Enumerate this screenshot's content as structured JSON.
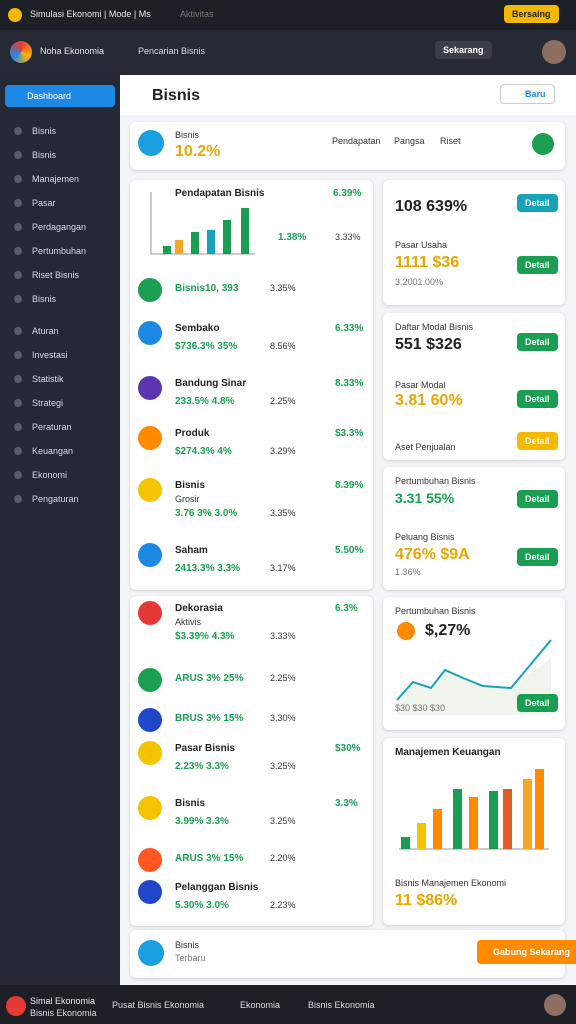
{
  "topbar": {
    "title": "Simulasi Ekonomi | Mode | Ms",
    "activity": "Aktivitas",
    "button": "Bersaing"
  },
  "header": {
    "brand": "Noha Ekonomia",
    "search": "Pencarian Bisnis",
    "button": "Sekarang"
  },
  "sidebar": {
    "items": [
      "Dashboard",
      "Bisnis",
      "Bisnis",
      "Manajemen",
      "Pasar",
      "Perdagangan",
      "Pertumbuhan",
      "Riset Bisnis",
      "Bisnis",
      "Aturan",
      "Investasi",
      "Statistik",
      "Strategi",
      "Peraturan",
      "Keuangan",
      "Ekonomi",
      "Pengaturan"
    ]
  },
  "main": {
    "title": "Bisnis",
    "new_button": "Baru",
    "summary": {
      "label": "Bisnis",
      "value": "10.2%",
      "col1": "Pendapatan",
      "col2": "Pangsa",
      "col3": "Riset"
    },
    "chart_card": {
      "title": "Pendapatan Bisnis",
      "top": "6.39%",
      "a": "1.38%",
      "b": "3.33%"
    },
    "rows": [
      {
        "title": "Bisnis10, 393",
        "change": "3.35%"
      },
      {
        "title": "Sembako",
        "right": "6.33%",
        "figure": "$736.3% 35%",
        "change": "8.56%"
      },
      {
        "title": "Bandung Sinar",
        "right": "8.33%",
        "figure": "233.5% 4.8%",
        "change": "2.25%"
      },
      {
        "title": "Produk",
        "right": "$3.3%",
        "figure": "$274.3% 4%",
        "change": "3.29%"
      },
      {
        "title": "Bisnis",
        "sub": "Grosir",
        "right": "8.39%",
        "figure": "3.76 3% 3.0%",
        "change": "3.35%"
      },
      {
        "title": "Saham",
        "right": "5.50%",
        "figure": "2413.3% 3.3%",
        "change": "3.17%"
      },
      {
        "title": "Dekorasia",
        "sub": "Aktivis",
        "right": "6.3%",
        "figure": "$3.39% 4.3%",
        "change": "3.33%"
      },
      {
        "title": "ARUS 3% 25%",
        "change": "2.25%"
      },
      {
        "title": "BRUS 3% 15%",
        "change": "3.30%"
      },
      {
        "title": "Pasar Bisnis",
        "right": "$30%",
        "figure": "2.23% 3.3%",
        "change": "3.25%"
      },
      {
        "title": "Bisnis",
        "right": "3.3%",
        "figure": "3.99% 3.3%",
        "change": "3.25%"
      },
      {
        "title": "ARUS 3% 15%",
        "change": "2.20%"
      },
      {
        "title": "Pelanggan Bisnis",
        "figure": "5.30% 3.0%",
        "change": "2.23%"
      }
    ],
    "side": {
      "v1": "108 639%",
      "label1": "Pasar Usaha",
      "v2": "1111 $36",
      "note1": "3.2001.00%",
      "label2": "Daftar Modal Bisnis",
      "v3": "551 $326",
      "label3": "Pasar Modal",
      "v4": "3.81 60%",
      "label4": "Aset Penjualan",
      "label5": "Pertumbuhan Bisnis",
      "v5": "3.31 55%",
      "label6": "Peluang Bisnis",
      "v6": "476% $9A",
      "note2": "1.36%",
      "label7": "Pertumbuhan Bisnis",
      "v7": "$,27%",
      "note3": "$30 $30 $30",
      "label8": "Manajemen Keuangan",
      "label9": "Bisnis Manajemen Ekonomi",
      "v9": "11 $86%",
      "button": "Detail"
    },
    "footer_card": {
      "title": "Bisnis",
      "sub": "Terbaru",
      "button": "Gabung Sekarang"
    }
  },
  "footer": {
    "brand": "Simal Ekonomia",
    "sub": "Bisnis Ekonomia",
    "link1": "Pusat Bisnis Ekonomia",
    "link2": "Ekonomia",
    "link3": "Bisnis Ekonomia"
  }
}
